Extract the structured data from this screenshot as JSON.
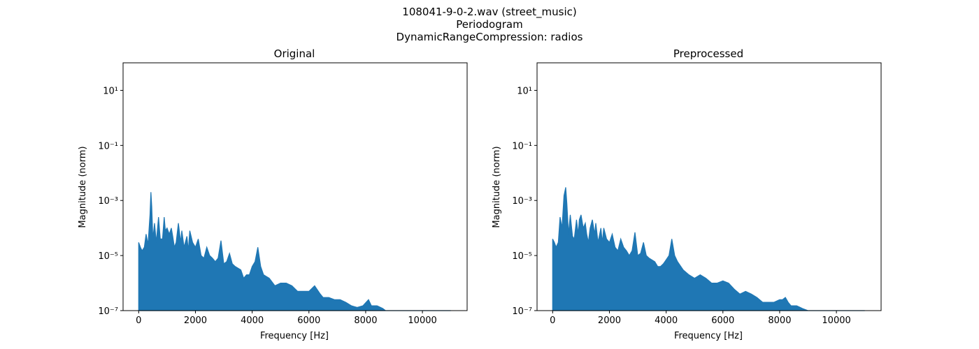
{
  "figure": {
    "suptitle_lines": [
      "108041-9-0-2.wav (street_music)",
      "Periodogram",
      "DynamicRangeCompression: radios"
    ]
  },
  "colors": {
    "series": "#1f77b4",
    "axes": "#000000",
    "background": "#ffffff"
  },
  "chart_data": [
    {
      "type": "line",
      "title": "Original",
      "xlabel": "Frequency [Hz]",
      "ylabel": "Magnitude (norm)",
      "xscale": "linear",
      "yscale": "log",
      "xlim": [
        -550,
        11575
      ],
      "ylim": [
        1e-07,
        100
      ],
      "grid": false,
      "xticks": [
        0,
        2000,
        4000,
        6000,
        8000,
        10000
      ],
      "xtick_labels": [
        "0",
        "2000",
        "4000",
        "6000",
        "8000",
        "10000"
      ],
      "yticks": [
        1e-07,
        1e-05,
        0.001,
        0.1,
        10
      ],
      "ytick_labels": [
        "10⁻⁷",
        "10⁻⁵",
        "10⁻³",
        "10⁻¹",
        "10¹"
      ],
      "series": [
        {
          "x": [
            0,
            60,
            120,
            200,
            260,
            330,
            400,
            430,
            460,
            500,
            560,
            620,
            700,
            760,
            840,
            900,
            940,
            1000,
            1080,
            1150,
            1200,
            1260,
            1320,
            1400,
            1480,
            1520,
            1600,
            1700,
            1750,
            1800,
            1900,
            2000,
            2100,
            2200,
            2300,
            2400,
            2500,
            2600,
            2700,
            2800,
            2900,
            3000,
            3100,
            3200,
            3300,
            3400,
            3600,
            3700,
            3800,
            3900,
            4000,
            4100,
            4200,
            4300,
            4400,
            4600,
            4800,
            5000,
            5200,
            5400,
            5600,
            5800,
            6000,
            6200,
            6400,
            6500,
            6700,
            6900,
            7100,
            7300,
            7500,
            7700,
            7900,
            8100,
            8200,
            8400,
            8600,
            8700,
            9000,
            10000,
            11000
          ],
          "y": [
            3e-05,
            2e-05,
            1.5e-05,
            2e-05,
            6e-05,
            2.5e-05,
            0.0003,
            0.002,
            0.0006,
            4e-05,
            0.00015,
            3e-05,
            0.00025,
            4e-05,
            4e-05,
            0.00025,
            8e-05,
            0.0001,
            6e-05,
            0.0001,
            5e-05,
            2e-05,
            3e-05,
            0.00015,
            3e-05,
            8e-05,
            2e-05,
            5e-05,
            1.5e-05,
            8e-05,
            3e-05,
            2e-05,
            4e-05,
            1e-05,
            8e-06,
            2e-05,
            1e-05,
            8e-06,
            6e-06,
            8e-06,
            3.5e-05,
            5e-06,
            6e-06,
            1.2e-05,
            5e-06,
            4e-06,
            3e-06,
            1.5e-06,
            2e-06,
            2e-06,
            4e-06,
            6e-06,
            2e-05,
            4e-06,
            2e-06,
            1.5e-06,
            8e-07,
            1e-06,
            1e-06,
            8e-07,
            5e-07,
            5e-07,
            5e-07,
            8e-07,
            4e-07,
            3e-07,
            3e-07,
            2.5e-07,
            2.5e-07,
            2e-07,
            1.5e-07,
            1.3e-07,
            1.5e-07,
            2.5e-07,
            1.5e-07,
            1.5e-07,
            1.2e-07,
            1e-07,
            1e-07,
            1e-07,
            1e-07
          ]
        }
      ]
    },
    {
      "type": "line",
      "title": "Preprocessed",
      "xlabel": "Frequency [Hz]",
      "ylabel": "Magnitude (norm)",
      "xscale": "linear",
      "yscale": "log",
      "xlim": [
        -550,
        11575
      ],
      "ylim": [
        1e-07,
        100
      ],
      "grid": false,
      "xticks": [
        0,
        2000,
        4000,
        6000,
        8000,
        10000
      ],
      "xtick_labels": [
        "0",
        "2000",
        "4000",
        "6000",
        "8000",
        "10000"
      ],
      "yticks": [
        1e-07,
        1e-05,
        0.001,
        0.1,
        10
      ],
      "ytick_labels": [
        "10⁻⁷",
        "10⁻⁵",
        "10⁻³",
        "10⁻¹",
        "10¹"
      ],
      "series": [
        {
          "x": [
            0,
            60,
            120,
            200,
            260,
            330,
            400,
            460,
            500,
            560,
            620,
            700,
            760,
            840,
            900,
            940,
            1000,
            1080,
            1150,
            1200,
            1260,
            1320,
            1400,
            1480,
            1520,
            1600,
            1700,
            1750,
            1800,
            1900,
            2000,
            2100,
            2200,
            2300,
            2400,
            2500,
            2600,
            2700,
            2800,
            2900,
            3000,
            3100,
            3200,
            3300,
            3400,
            3600,
            3700,
            3800,
            3900,
            4000,
            4100,
            4200,
            4300,
            4400,
            4600,
            4800,
            5000,
            5200,
            5400,
            5600,
            5800,
            6000,
            6200,
            6400,
            6600,
            6800,
            7000,
            7200,
            7400,
            7600,
            7800,
            8000,
            8100,
            8200,
            8300,
            8400,
            8600,
            8800,
            9000,
            10000,
            11000
          ],
          "y": [
            4e-05,
            3e-05,
            2e-05,
            3e-05,
            0.00025,
            0.0001,
            0.0015,
            0.003,
            0.0008,
            6e-05,
            0.0003,
            5e-05,
            4e-05,
            0.0002,
            6e-05,
            0.0002,
            0.0003,
            0.0001,
            0.00015,
            6e-05,
            3e-05,
            0.0001,
            0.0002,
            6e-05,
            0.00015,
            3e-05,
            0.0001,
            3e-05,
            0.0001,
            4e-05,
            3e-05,
            6e-05,
            2e-05,
            1.5e-05,
            4e-05,
            2e-05,
            1.5e-05,
            1e-05,
            1.5e-05,
            7e-05,
            1e-05,
            1.2e-05,
            3e-05,
            1e-05,
            8e-06,
            6e-06,
            4e-06,
            4e-06,
            5e-06,
            7e-06,
            1e-05,
            4e-05,
            1e-05,
            6e-06,
            3e-06,
            2e-06,
            1.5e-06,
            2e-06,
            1.5e-06,
            1e-06,
            1e-06,
            1.2e-06,
            1e-06,
            6e-07,
            4e-07,
            5e-07,
            4e-07,
            3e-07,
            2e-07,
            2e-07,
            2e-07,
            2.5e-07,
            2.5e-07,
            3e-07,
            2e-07,
            1.5e-07,
            1.5e-07,
            1.2e-07,
            1e-07,
            1e-07,
            1e-07
          ]
        }
      ]
    }
  ]
}
